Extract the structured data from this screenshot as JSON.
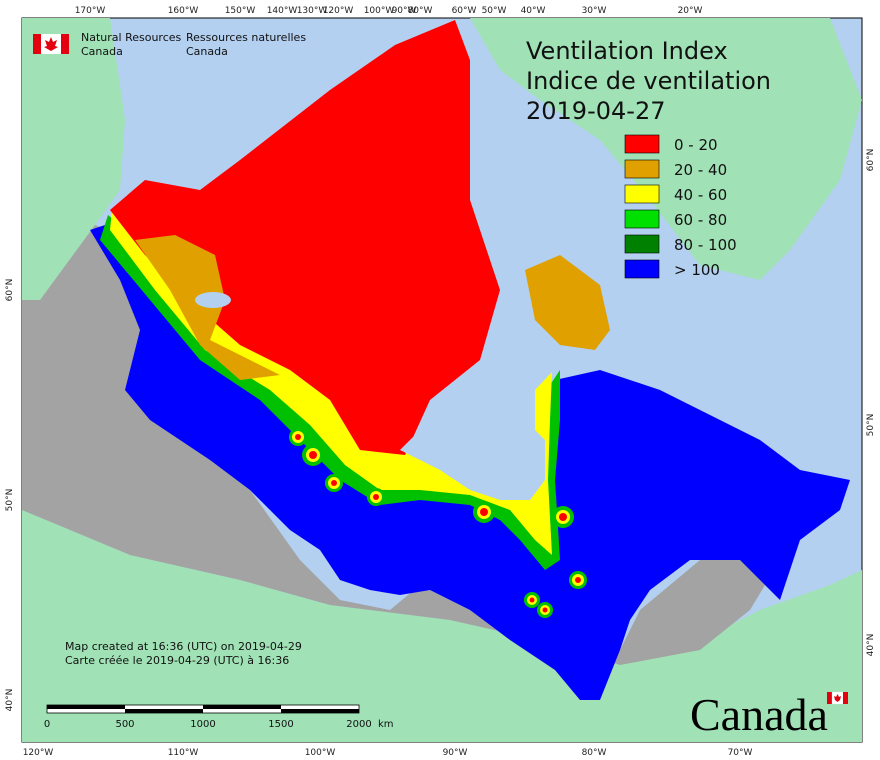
{
  "header": {
    "agency_en": "Natural Resources",
    "country_en": "Canada",
    "agency_fr": "Ressources naturelles",
    "country_fr": "Canada"
  },
  "title": {
    "line1": "Ventilation Index",
    "line2": "Indice de ventilation",
    "date": "2019-04-27"
  },
  "legend": [
    {
      "label": "0 - 20",
      "color": "#ff0000"
    },
    {
      "label": "20 - 40",
      "color": "#e0a000"
    },
    {
      "label": "40 - 60",
      "color": "#ffff00"
    },
    {
      "label": "60 - 80",
      "color": "#00e000"
    },
    {
      "label": "80 - 100",
      "color": "#008000"
    },
    {
      "label": "> 100",
      "color": "#0000ff"
    }
  ],
  "top_longitudes": [
    "170°W",
    "160°W",
    "150°W",
    "140°W",
    "130°W",
    "120°W",
    "100°W",
    "90°W",
    "80°W",
    "60°W",
    "50°W",
    "40°W",
    "30°W",
    "20°W"
  ],
  "bottom_longitudes": [
    "120°W",
    "110°W",
    "100°W",
    "90°W",
    "80°W",
    "70°W"
  ],
  "left_latitudes": [
    "60°N",
    "50°N",
    "40°N"
  ],
  "right_latitudes": [
    "60°N",
    "50°N",
    "40°N"
  ],
  "footer": {
    "created_en": "Map created at 16:36 (UTC) on 2019-04-29",
    "created_fr": "Carte créée le 2019-04-29 (UTC) à 16:36"
  },
  "scale": {
    "ticks": [
      "0",
      "500",
      "1000",
      "1500",
      "2000"
    ],
    "unit": "km"
  },
  "wordmark": "Canada"
}
